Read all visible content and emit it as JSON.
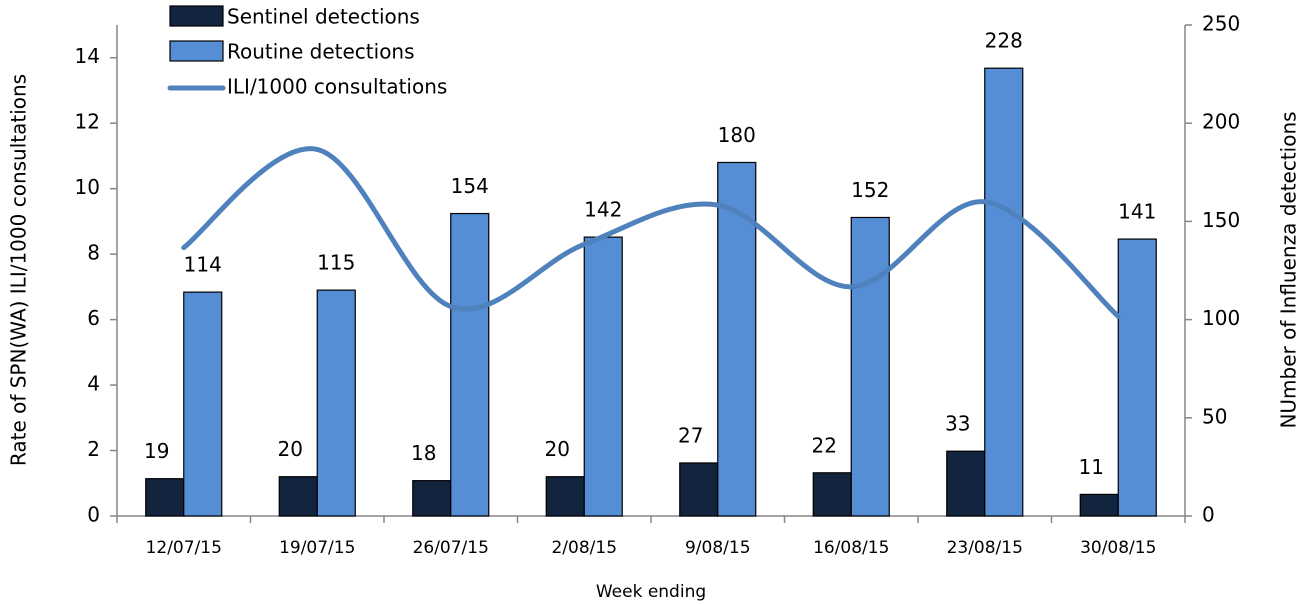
{
  "chart_data": {
    "type": "bar_line_combo",
    "x_label": "Week ending",
    "y_label": "Rate of SPN(WA) ILI/1000 consultations",
    "y2_label": "NUmber of Influenza detections",
    "categories": [
      "12/07/15",
      "19/07/15",
      "26/07/15",
      "2/08/15",
      "9/08/15",
      "16/08/15",
      "23/08/15",
      "30/08/15"
    ],
    "series": [
      {
        "name": "Sentinel detections",
        "type": "bar",
        "axis": "y2",
        "color": "#13243f",
        "values": [
          19,
          20,
          18,
          20,
          27,
          22,
          33,
          11
        ]
      },
      {
        "name": "Routine detections",
        "type": "bar",
        "axis": "y2",
        "color": "#558ed5",
        "values": [
          114,
          115,
          154,
          142,
          180,
          152,
          228,
          141
        ]
      },
      {
        "name": "ILI/1000 consultations",
        "type": "line",
        "axis": "y",
        "color": "#4f81bd",
        "smooth": true,
        "values": [
          8.2,
          11.2,
          6.4,
          8.3,
          9.5,
          7.0,
          9.6,
          6.1
        ]
      }
    ],
    "ylim": [
      0,
      15
    ],
    "yticks": [
      0,
      2,
      4,
      6,
      8,
      10,
      12,
      14
    ],
    "y2lim": [
      0,
      250
    ],
    "y2ticks": [
      0,
      50,
      100,
      150,
      200,
      250
    ],
    "legend": "top-left",
    "grid": false
  }
}
